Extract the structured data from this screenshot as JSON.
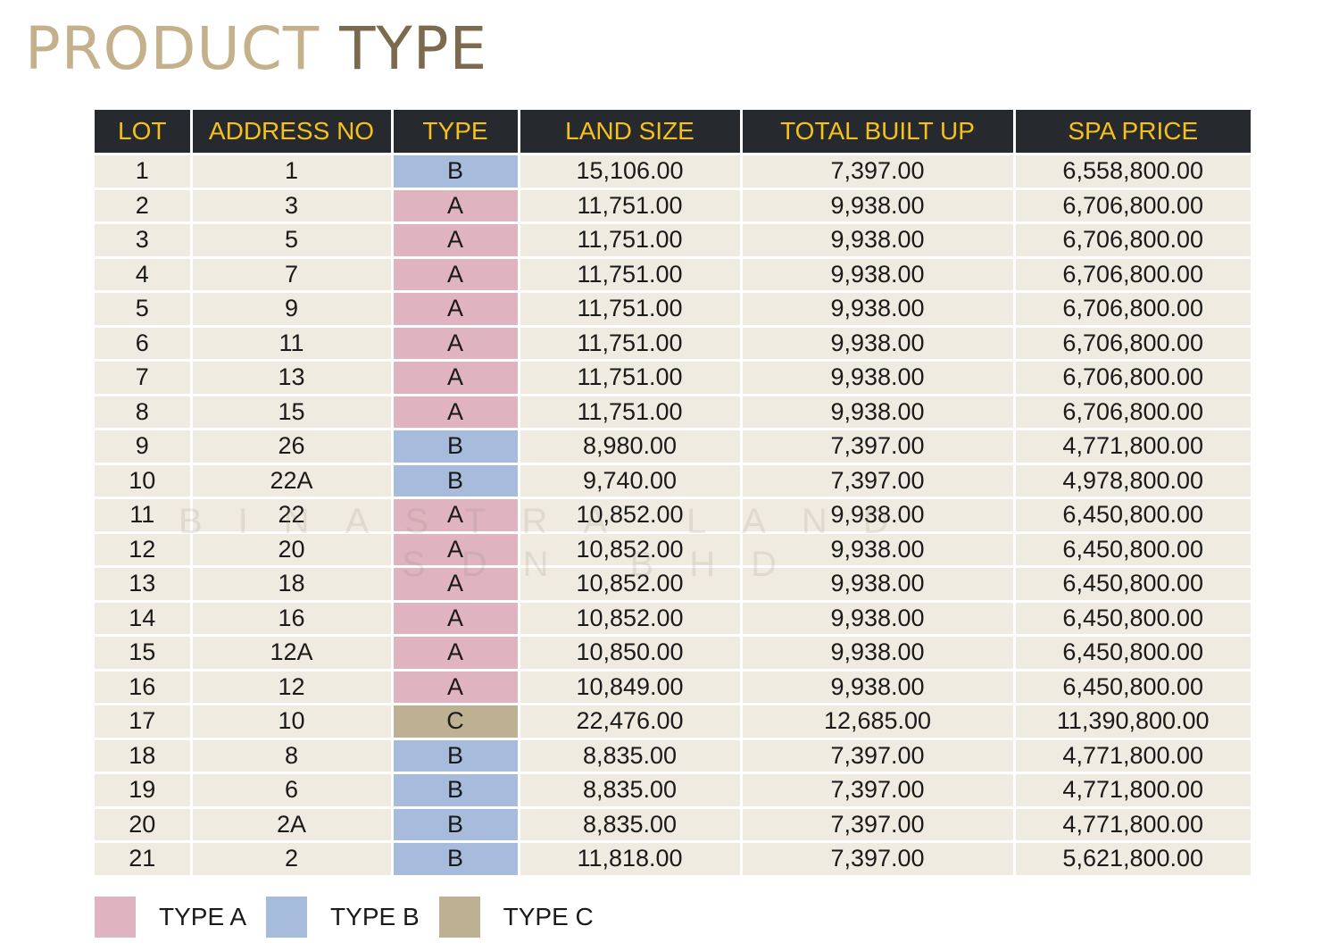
{
  "title": {
    "word1": "PRODUCT",
    "word2": "TYPE"
  },
  "columns": [
    "LOT",
    "ADDRESS NO",
    "TYPE",
    "LAND SIZE",
    "TOTAL BUILT UP",
    "SPA PRICE"
  ],
  "rows": [
    [
      "1",
      "1",
      "B",
      "15,106.00",
      "7,397.00",
      "6,558,800.00"
    ],
    [
      "2",
      "3",
      "A",
      "11,751.00",
      "9,938.00",
      "6,706,800.00"
    ],
    [
      "3",
      "5",
      "A",
      "11,751.00",
      "9,938.00",
      "6,706,800.00"
    ],
    [
      "4",
      "7",
      "A",
      "11,751.00",
      "9,938.00",
      "6,706,800.00"
    ],
    [
      "5",
      "9",
      "A",
      "11,751.00",
      "9,938.00",
      "6,706,800.00"
    ],
    [
      "6",
      "11",
      "A",
      "11,751.00",
      "9,938.00",
      "6,706,800.00"
    ],
    [
      "7",
      "13",
      "A",
      "11,751.00",
      "9,938.00",
      "6,706,800.00"
    ],
    [
      "8",
      "15",
      "A",
      "11,751.00",
      "9,938.00",
      "6,706,800.00"
    ],
    [
      "9",
      "26",
      "B",
      "8,980.00",
      "7,397.00",
      "4,771,800.00"
    ],
    [
      "10",
      "22A",
      "B",
      "9,740.00",
      "7,397.00",
      "4,978,800.00"
    ],
    [
      "11",
      "22",
      "A",
      "10,852.00",
      "9,938.00",
      "6,450,800.00"
    ],
    [
      "12",
      "20",
      "A",
      "10,852.00",
      "9,938.00",
      "6,450,800.00"
    ],
    [
      "13",
      "18",
      "A",
      "10,852.00",
      "9,938.00",
      "6,450,800.00"
    ],
    [
      "14",
      "16",
      "A",
      "10,852.00",
      "9,938.00",
      "6,450,800.00"
    ],
    [
      "15",
      "12A",
      "A",
      "10,850.00",
      "9,938.00",
      "6,450,800.00"
    ],
    [
      "16",
      "12",
      "A",
      "10,849.00",
      "9,938.00",
      "6,450,800.00"
    ],
    [
      "17",
      "10",
      "C",
      "22,476.00",
      "12,685.00",
      "11,390,800.00"
    ],
    [
      "18",
      "8",
      "B",
      "8,835.00",
      "7,397.00",
      "4,771,800.00"
    ],
    [
      "19",
      "6",
      "B",
      "8,835.00",
      "7,397.00",
      "4,771,800.00"
    ],
    [
      "20",
      "2A",
      "B",
      "8,835.00",
      "7,397.00",
      "4,771,800.00"
    ],
    [
      "21",
      "2",
      "B",
      "11,818.00",
      "7,397.00",
      "5,621,800.00"
    ]
  ],
  "type_colors": {
    "A": "#dfb3bf",
    "B": "#a7bcdc",
    "C": "#bdb093"
  },
  "legend": [
    {
      "type": "A",
      "label": "TYPE A",
      "color": "#dfb3bf"
    },
    {
      "type": "B",
      "label": "TYPE B",
      "color": "#a7bcdc"
    },
    {
      "type": "C",
      "label": "TYPE C",
      "color": "#bdb093"
    }
  ],
  "watermark": {
    "line1": "BINASTRA LAND",
    "line2": "SDN BHD"
  }
}
